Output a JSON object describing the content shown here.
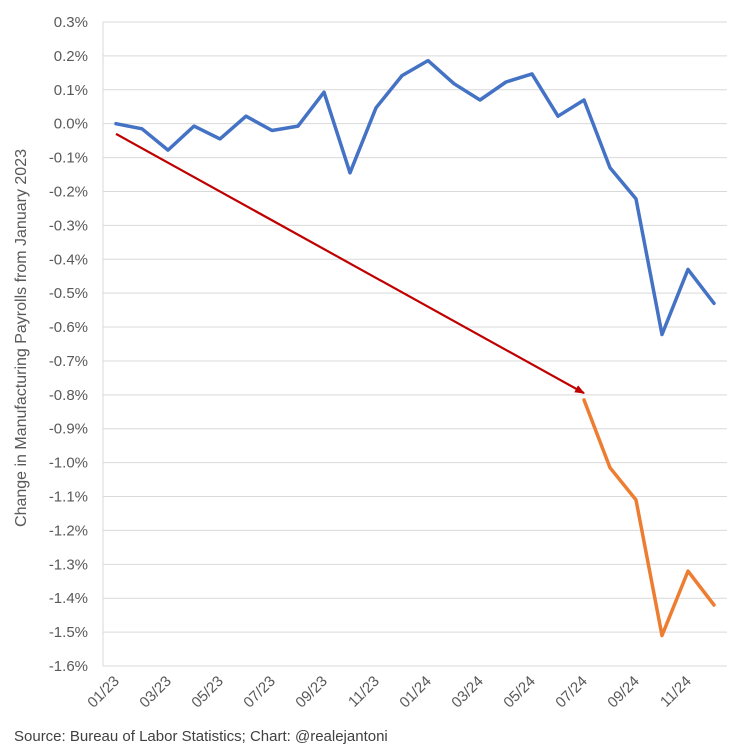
{
  "chart_data": {
    "type": "line",
    "ylabel": "Change in Manufacturing Payrolls from January 2023",
    "source": "Source: Bureau of Labor Statistics; Chart: @realejantoni",
    "x": [
      "01/23",
      "02/23",
      "03/23",
      "04/23",
      "05/23",
      "06/23",
      "07/23",
      "08/23",
      "09/23",
      "10/23",
      "11/23",
      "12/23",
      "01/24",
      "02/24",
      "03/24",
      "04/24",
      "05/24",
      "06/24",
      "07/24",
      "08/24",
      "09/24",
      "10/24",
      "11/24",
      "12/24"
    ],
    "xtick_labels": [
      "01/23",
      "03/23",
      "05/23",
      "07/23",
      "09/23",
      "11/23",
      "01/24",
      "03/24",
      "05/24",
      "07/24",
      "09/24",
      "11/24"
    ],
    "yticks": [
      "0.3%",
      "0.2%",
      "0.1%",
      "0.0%",
      "-0.1%",
      "-0.2%",
      "-0.3%",
      "-0.4%",
      "-0.5%",
      "-0.6%",
      "-0.7%",
      "-0.8%",
      "-0.9%",
      "-1.0%",
      "-1.1%",
      "-1.2%",
      "-1.3%",
      "-1.4%",
      "-1.5%",
      "-1.6%"
    ],
    "ylim": [
      -1.6,
      0.3
    ],
    "grid": true,
    "series": [
      {
        "color": "#4472C4",
        "values": [
          0.0,
          -0.015,
          -0.078,
          -0.007,
          -0.045,
          0.022,
          -0.02,
          -0.007,
          0.093,
          -0.145,
          0.047,
          0.142,
          0.186,
          0.118,
          0.07,
          0.123,
          0.147,
          0.022,
          0.07,
          -0.13,
          -0.222,
          -0.622,
          -0.43,
          -0.53
        ]
      },
      {
        "color": "#ED7D31",
        "values": [
          null,
          null,
          null,
          null,
          null,
          null,
          null,
          null,
          null,
          null,
          null,
          null,
          null,
          null,
          null,
          null,
          null,
          null,
          -0.815,
          -1.015,
          -1.11,
          -1.51,
          -1.32,
          -1.42
        ]
      }
    ],
    "annotations": [
      {
        "type": "arrow",
        "color": "#C00000",
        "from": {
          "x": "01/23",
          "y": -0.03
        },
        "to": {
          "x": "07/24",
          "y": -0.795
        }
      }
    ]
  }
}
